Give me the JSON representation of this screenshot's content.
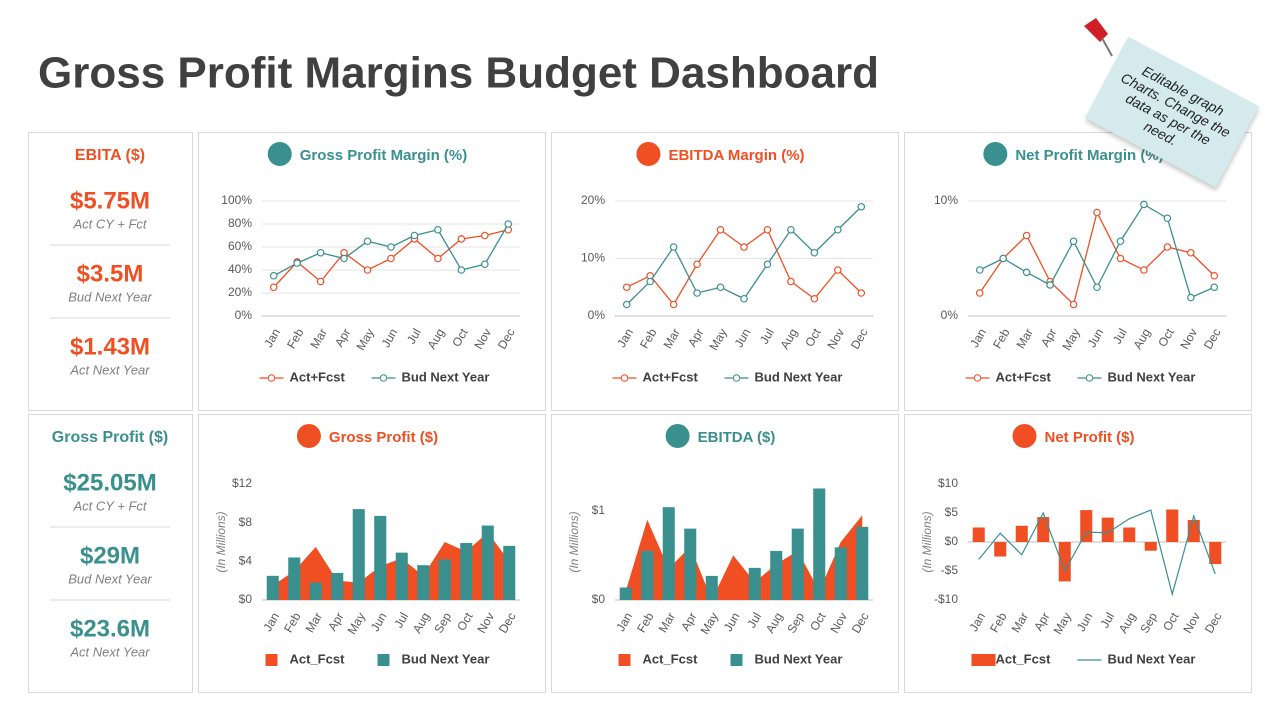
{
  "header": {
    "title": "Gross Profit Margins Budget Dashboard"
  },
  "note": {
    "text": "Editable graph Charts. Change the data as per the need."
  },
  "kpis": [
    {
      "title": "EBITA ($)",
      "color": "#ef4f23",
      "items": [
        {
          "value": "$5.75M",
          "label": "Act CY + Fct"
        },
        {
          "value": "$3.5M",
          "label": "Bud Next Year"
        },
        {
          "value": "$1.43M",
          "label": "Act Next Year"
        }
      ]
    },
    {
      "title": "Gross Profit ($)",
      "color": "#3a8f8f",
      "items": [
        {
          "value": "$25.05M",
          "label": "Act CY + Fct"
        },
        {
          "value": "$29M",
          "label": "Bud Next Year"
        },
        {
          "value": "$23.6M",
          "label": "Act Next Year"
        }
      ]
    }
  ],
  "chart_data": [
    {
      "type": "line",
      "title": "Gross Profit Margin (%)",
      "title_color": "#3a8f8f",
      "grid": true,
      "categories": [
        "Jan",
        "Feb",
        "Mar",
        "Apr",
        "May",
        "Jun",
        "Jul",
        "Aug",
        "Oct",
        "Nov",
        "Dec"
      ],
      "series": [
        {
          "name": "Act+Fcst",
          "color": "#ef4f23",
          "values": [
            25,
            47,
            30,
            55,
            40,
            50,
            67,
            50,
            67,
            70,
            75
          ]
        },
        {
          "name": "Bud Next Year",
          "color": "#3a8f8f",
          "values": [
            35,
            46,
            55,
            50,
            65,
            60,
            70,
            75,
            40,
            45,
            80
          ]
        }
      ],
      "ylim": [
        0,
        100
      ],
      "yticks": [
        {
          "value": 0,
          "label": "0%"
        },
        {
          "value": 20,
          "label": "20%"
        },
        {
          "value": 40,
          "label": "40%"
        },
        {
          "value": 60,
          "label": "60%"
        },
        {
          "value": 80,
          "label": "80%"
        },
        {
          "value": 100,
          "label": "100%"
        }
      ]
    },
    {
      "type": "line",
      "title": "EBITDA Margin (%)",
      "title_color": "#ef4f23",
      "grid": true,
      "categories": [
        "Jan",
        "Feb",
        "Mar",
        "Apr",
        "May",
        "Jun",
        "Jul",
        "Aug",
        "Oct",
        "Nov",
        "Dec"
      ],
      "series": [
        {
          "name": "Act+Fcst",
          "color": "#ef4f23",
          "values": [
            5,
            7,
            2,
            9,
            15,
            12,
            15,
            6,
            3,
            8,
            4
          ]
        },
        {
          "name": "Bud Next Year",
          "color": "#3a8f8f",
          "values": [
            2,
            6,
            12,
            4,
            5,
            3,
            9,
            15,
            11,
            15,
            19
          ]
        }
      ],
      "ylim": [
        0,
        20
      ],
      "yticks": [
        {
          "value": 0,
          "label": "0%"
        },
        {
          "value": 10,
          "label": "10%"
        },
        {
          "value": 20,
          "label": "20%"
        }
      ]
    },
    {
      "type": "line",
      "title": "Net Profit Margin (%)",
      "title_color": "#3a8f8f",
      "grid": true,
      "categories": [
        "Jan",
        "Feb",
        "Mar",
        "Apr",
        "May",
        "Jun",
        "Jul",
        "Aug",
        "Oct",
        "Nov",
        "Dec"
      ],
      "series": [
        {
          "name": "Act+Fcst",
          "color": "#ef4f23",
          "values": [
            2,
            5,
            7,
            3,
            1,
            9,
            5,
            4,
            6,
            5.5,
            3.5
          ]
        },
        {
          "name": "Bud Next Year",
          "color": "#3a8f8f",
          "values": [
            4,
            5,
            3.8,
            2.7,
            6.5,
            2.5,
            6.5,
            9.7,
            8.5,
            1.6,
            2.5
          ]
        }
      ],
      "ylim": [
        0,
        10
      ],
      "yticks": [
        {
          "value": 0,
          "label": "0%"
        },
        {
          "value": 10,
          "label": "10%"
        }
      ]
    },
    {
      "type": "combo",
      "title": "Gross Profit ($)",
      "title_color": "#ef4f23",
      "grid": false,
      "y_label": "(In Millions)",
      "categories": [
        "Jan",
        "Feb",
        "Mar",
        "Apr",
        "May",
        "Jun",
        "Jul",
        "Aug",
        "Sep",
        "Oct",
        "Nov",
        "Dec"
      ],
      "series": [
        {
          "name": "Act_Fcst",
          "kind": "area",
          "color": "#ef4f23",
          "values": [
            1.5,
            3,
            5.5,
            2,
            1.8,
            3.5,
            4.3,
            2.5,
            6,
            5,
            7,
            4
          ]
        },
        {
          "name": "Bud Next Year",
          "kind": "bar",
          "color": "#3a8f8f",
          "values": [
            2.5,
            4.4,
            1.8,
            2.8,
            9.4,
            8.7,
            4.9,
            3.6,
            4.2,
            5.9,
            7.7,
            5.6
          ]
        }
      ],
      "ylim": [
        0,
        12
      ],
      "yticks": [
        {
          "value": 0,
          "label": "$0"
        },
        {
          "value": 4,
          "label": "$4"
        },
        {
          "value": 8,
          "label": "$8"
        },
        {
          "value": 12,
          "label": "$12"
        }
      ]
    },
    {
      "type": "combo",
      "title": "EBITDA ($)",
      "title_color": "#3a8f8f",
      "grid": false,
      "y_label": "(In Millions)",
      "categories": [
        "Jan",
        "Feb",
        "Mar",
        "Apr",
        "May",
        "Jun",
        "Jul",
        "Aug",
        "Sep",
        "Oct",
        "Nov",
        "Dec"
      ],
      "series": [
        {
          "name": "Act_Fcst",
          "kind": "area",
          "color": "#ef4f23",
          "values": [
            0.1,
            0.9,
            0.35,
            0.6,
            0,
            0.5,
            0.2,
            0.4,
            0.55,
            0.1,
            0.65,
            0.95
          ]
        },
        {
          "name": "Bud Next Year",
          "kind": "bar",
          "color": "#3a8f8f",
          "values": [
            0.14,
            0.55,
            1.04,
            0.8,
            0.27,
            0,
            0.36,
            0.55,
            0.8,
            1.25,
            0.59,
            0.82
          ]
        }
      ],
      "ylim": [
        0,
        1.3
      ],
      "yticks": [
        {
          "value": 0,
          "label": "$0"
        },
        {
          "value": 1,
          "label": "$1"
        }
      ]
    },
    {
      "type": "combo",
      "title": "Net Profit ($)",
      "title_color": "#ef4f23",
      "grid": false,
      "y_label": "(In Millions)",
      "categories": [
        "Jan",
        "Feb",
        "Mar",
        "Apr",
        "May",
        "Jun",
        "Jul",
        "Aug",
        "Sep",
        "Oct",
        "Nov",
        "Dec"
      ],
      "series": [
        {
          "name": "Act_Fcst",
          "kind": "bar",
          "color": "#ef4f23",
          "values": [
            2.5,
            -2.5,
            2.8,
            4.3,
            -6.8,
            5.5,
            4.2,
            2.5,
            -1.5,
            5.6,
            3.8,
            -3.8
          ]
        },
        {
          "name": "Bud Next Year",
          "kind": "line",
          "color": "#3a8f8f",
          "values": [
            -3,
            1.5,
            -2.2,
            5,
            -5,
            1.7,
            1.6,
            4,
            5.5,
            -9,
            4.5,
            -5.5
          ]
        }
      ],
      "ylim": [
        -10,
        10
      ],
      "yticks": [
        {
          "value": -10,
          "label": "-$10"
        },
        {
          "value": -5,
          "label": "-$5"
        },
        {
          "value": 0,
          "label": "$0"
        },
        {
          "value": 5,
          "label": "$5"
        },
        {
          "value": 10,
          "label": "$10"
        }
      ]
    }
  ]
}
